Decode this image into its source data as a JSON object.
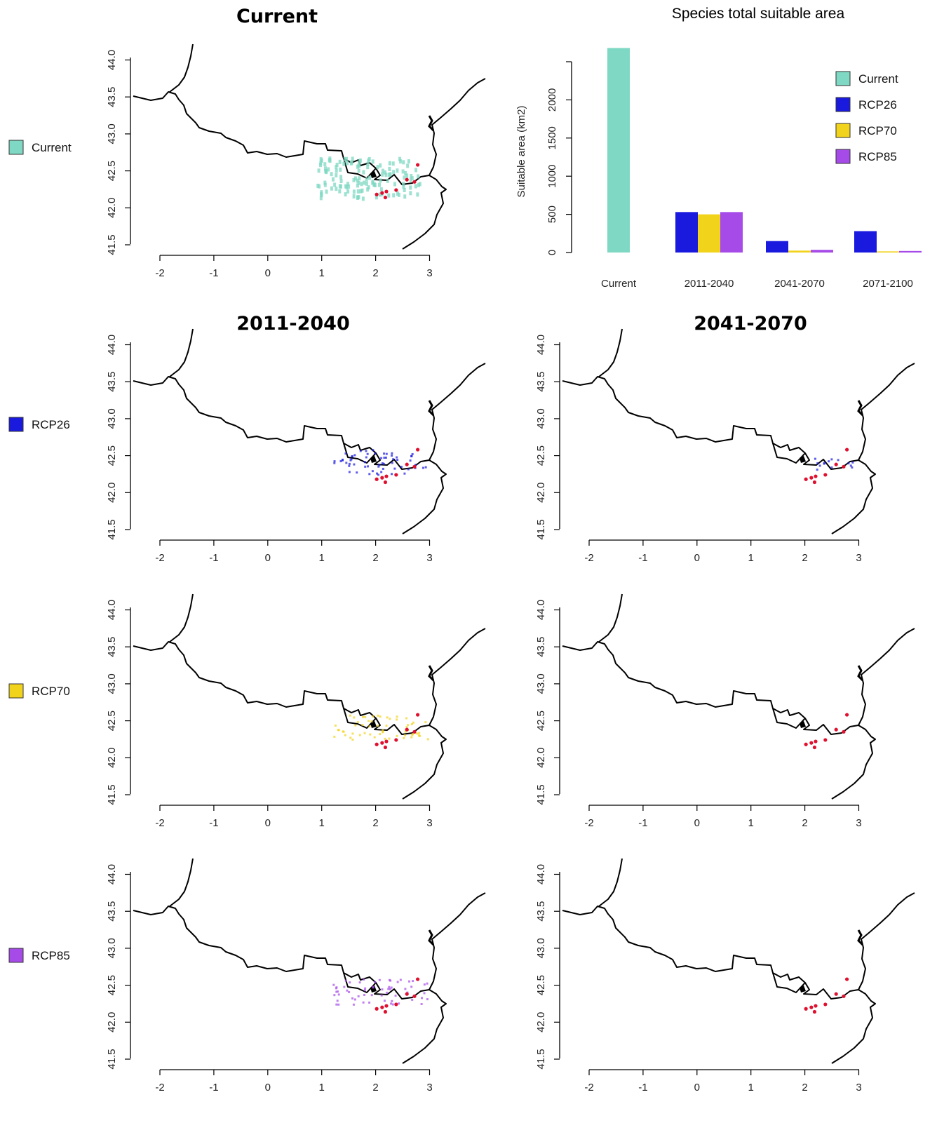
{
  "figure": {
    "column_titles": [
      "Current",
      "2011-2040",
      "2041-2070"
    ],
    "row_labels": [
      {
        "label": "Current",
        "color": "#7fd8c3"
      },
      {
        "label": "RCP26",
        "color": "#1a1adf"
      },
      {
        "label": "RCP70",
        "color": "#f2d31b"
      },
      {
        "label": "RCP85",
        "color": "#a64be8"
      }
    ],
    "map_axis": {
      "x_ticks": [
        "-2",
        "-1",
        "0",
        "1",
        "2",
        "3"
      ],
      "y_ticks": [
        "41.5",
        "42.0",
        "42.5",
        "43.0",
        "43.5",
        "44.0"
      ]
    }
  },
  "chart_data": {
    "type": "bar",
    "title": "Species total suitable area",
    "ylabel": "Suitable area (km2)",
    "xlabel": "",
    "categories": [
      "Current",
      "2011-2040",
      "2041-2070",
      "2071-2100"
    ],
    "ylim": [
      0,
      2500
    ],
    "y_ticks": [
      0,
      500,
      1000,
      1500,
      2000
    ],
    "series": [
      {
        "name": "Current",
        "color": "#7fd8c3",
        "values": [
          2680,
          null,
          null,
          null
        ]
      },
      {
        "name": "RCP26",
        "color": "#1a1adf",
        "values": [
          null,
          530,
          150,
          280
        ]
      },
      {
        "name": "RCP70",
        "color": "#f2d31b",
        "values": [
          null,
          500,
          25,
          15
        ]
      },
      {
        "name": "RCP85",
        "color": "#a64be8",
        "values": [
          null,
          530,
          35,
          20
        ]
      }
    ],
    "legend": "top-right"
  },
  "panels": [
    {
      "name": "map-current",
      "row": 0,
      "col": 0,
      "layers": [
        "Current"
      ]
    },
    {
      "name": "map-2011-2040-rcp26",
      "row": 1,
      "col": 0,
      "layers": [
        "RCP26"
      ]
    },
    {
      "name": "map-2041-2070-rcp26",
      "row": 1,
      "col": 1,
      "layers": [
        "RCP26"
      ]
    },
    {
      "name": "map-2011-2040-rcp70",
      "row": 2,
      "col": 0,
      "layers": [
        "RCP70"
      ]
    },
    {
      "name": "map-2041-2070-rcp70",
      "row": 2,
      "col": 1,
      "layers": []
    },
    {
      "name": "map-2011-2040-rcp85",
      "row": 3,
      "col": 0,
      "layers": [
        "RCP85"
      ]
    },
    {
      "name": "map-2041-2070-rcp85",
      "row": 3,
      "col": 1,
      "layers": []
    }
  ],
  "occurrences": [
    [
      1.52,
      42.18
    ],
    [
      1.62,
      42.2
    ],
    [
      1.68,
      42.14
    ],
    [
      1.7,
      42.22
    ],
    [
      1.88,
      42.24
    ],
    [
      2.08,
      42.38
    ],
    [
      2.22,
      42.35
    ],
    [
      2.28,
      42.58
    ]
  ]
}
